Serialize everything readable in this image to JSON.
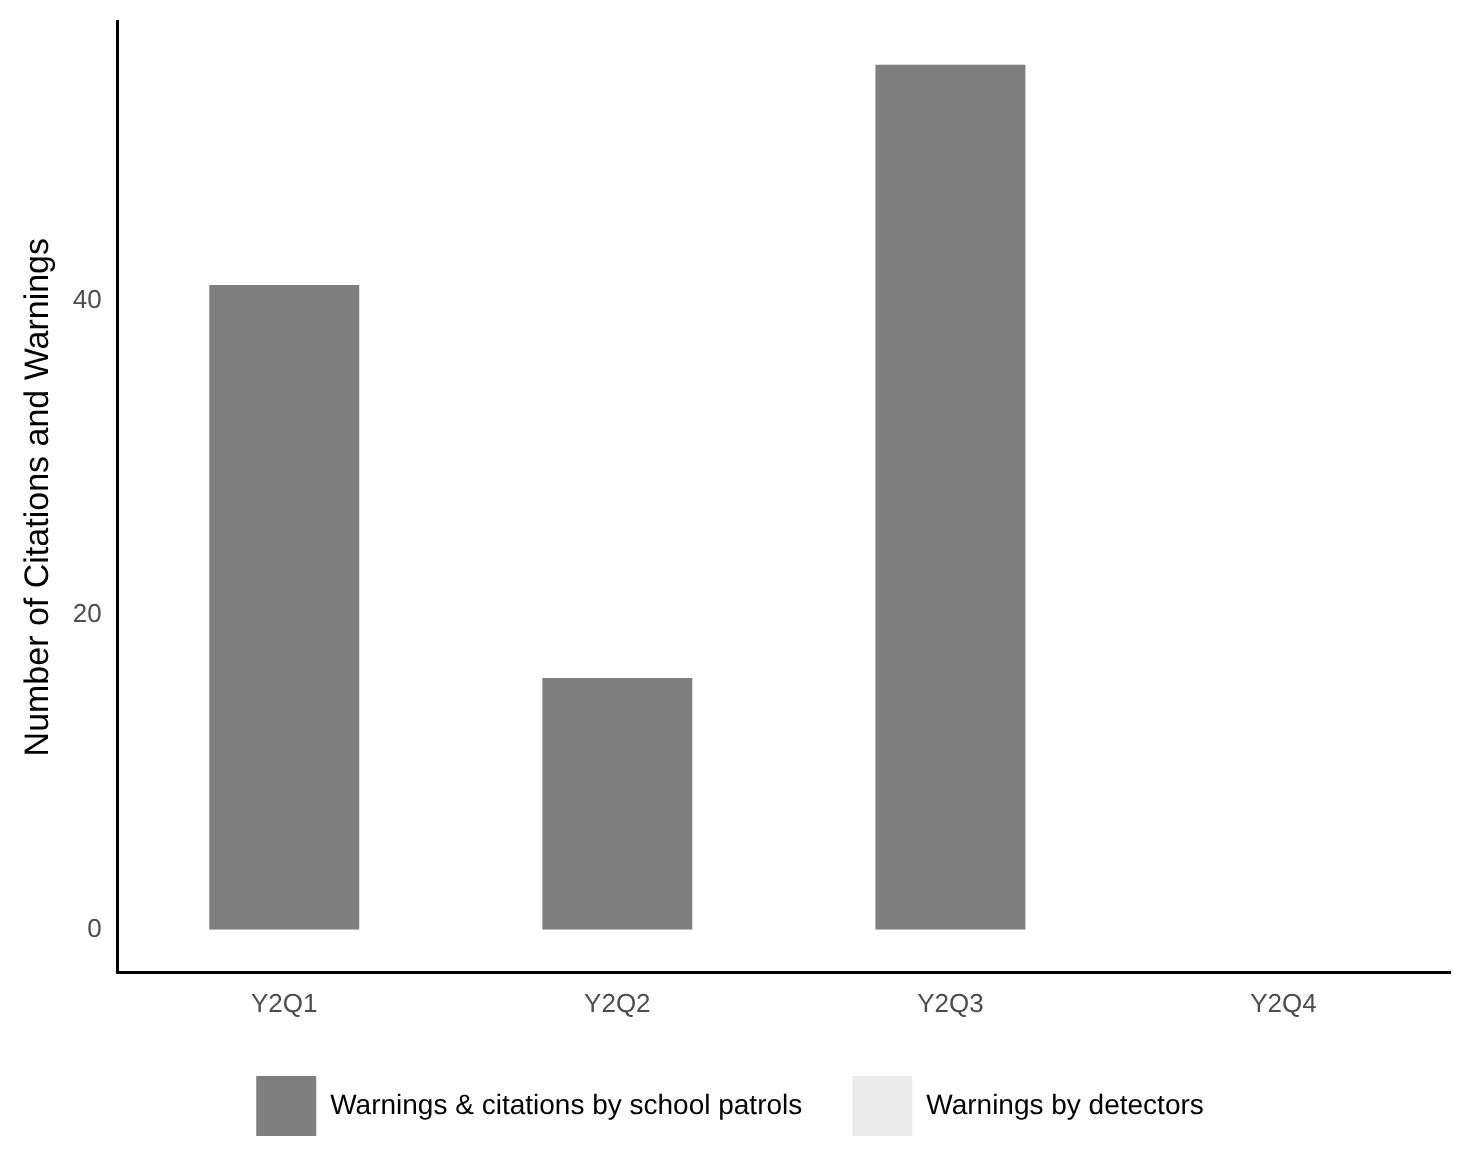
{
  "chart_data": {
    "type": "bar",
    "stacked": true,
    "ylabel": "Number of Citations and Warnings",
    "categories": [
      "Y2Q1",
      "Y2Q2",
      "Y2Q3",
      "Y2Q4"
    ],
    "series": [
      {
        "name": "Warnings & citations by school patrols",
        "color": "#7f7f7f",
        "values": [
          41,
          16,
          55,
          0
        ]
      },
      {
        "name": "Warnings by detectors",
        "color": "#ebebeb",
        "values": [
          0,
          0,
          0,
          0
        ]
      }
    ],
    "ylim": [
      -2.75,
      57.75
    ],
    "yticks": [
      0,
      20,
      40
    ],
    "grid": false,
    "legend": "bottom"
  }
}
